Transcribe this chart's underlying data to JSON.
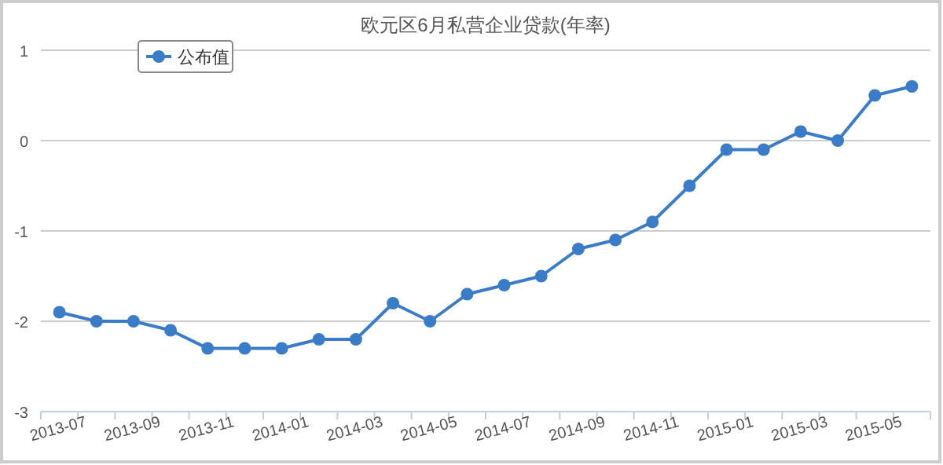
{
  "chart_data": {
    "type": "line",
    "title": "欧元区6月私营企业贷款(年率)",
    "categories": [
      "2013-07",
      null,
      "2013-09",
      null,
      "2013-11",
      null,
      "2014-01",
      null,
      "2014-03",
      null,
      "2014-05",
      null,
      "2014-07",
      null,
      "2014-09",
      null,
      "2014-11",
      null,
      "2015-01",
      null,
      "2015-03",
      null,
      "2015-05",
      null
    ],
    "series": [
      {
        "name": "公布值",
        "color": "#3b7cc9",
        "values": [
          -1.9,
          -2,
          -2,
          -2.1,
          -2.3,
          -2.3,
          -2.3,
          -2.2,
          -2.2,
          -1.8,
          -2.0,
          -1.7,
          -1.6,
          -1.5,
          -1.2,
          -1.1,
          -0.9,
          -0.5,
          -0.1,
          -0.1,
          0.1,
          0.0,
          0.5,
          0.6
        ]
      }
    ],
    "ylim": [
      -3,
      1
    ],
    "yticks": [
      -3,
      -2,
      -1,
      0,
      1
    ],
    "grid": "y",
    "legend": "top left",
    "marker": "circle"
  }
}
